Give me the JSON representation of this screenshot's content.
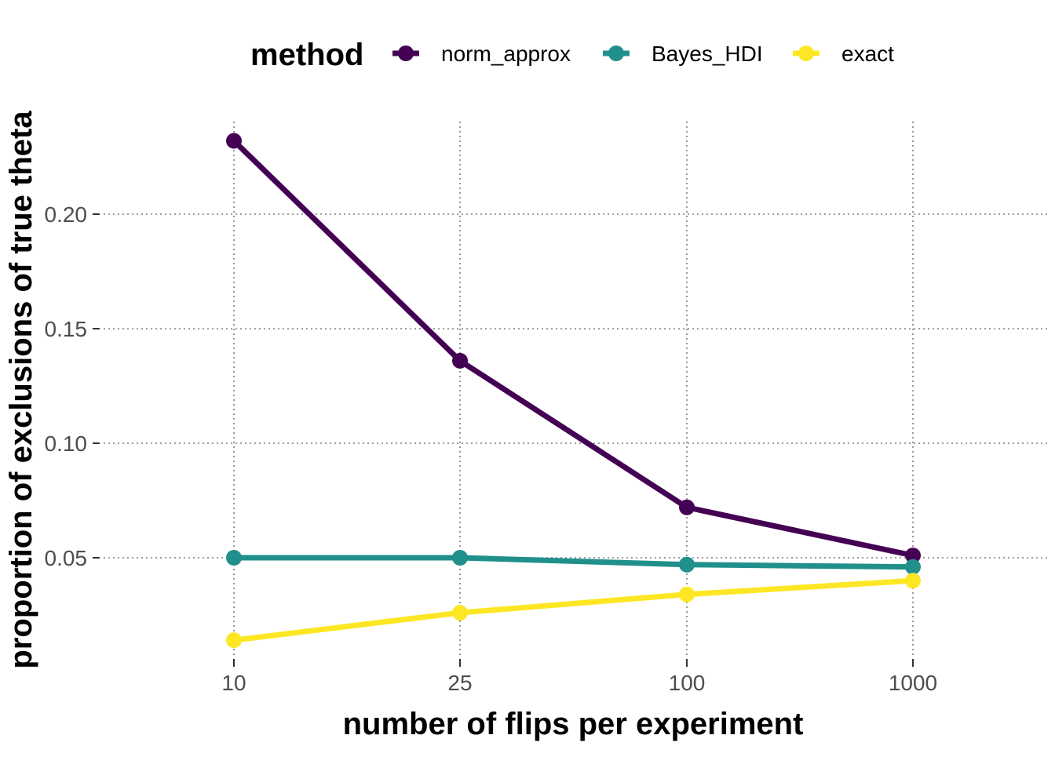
{
  "chart_data": {
    "type": "line",
    "title": "",
    "xlabel": "number of flips per experiment",
    "ylabel": "proportion of exclusions of true theta",
    "categories": [
      "10",
      "25",
      "100",
      "1000"
    ],
    "yticks": [
      "0.05",
      "0.10",
      "0.15",
      "0.20"
    ],
    "ylim": [
      0.0,
      0.24
    ],
    "grid": true,
    "legend": {
      "title": "method",
      "position": "top"
    },
    "series": [
      {
        "name": "norm_approx",
        "color": "#440154",
        "values": [
          0.232,
          0.136,
          0.072,
          0.051
        ]
      },
      {
        "name": "Bayes_HDI",
        "color": "#21908C",
        "values": [
          0.05,
          0.05,
          0.047,
          0.046
        ]
      },
      {
        "name": "exact",
        "color": "#FDE725",
        "values": [
          0.014,
          0.026,
          0.034,
          0.04
        ]
      }
    ]
  }
}
